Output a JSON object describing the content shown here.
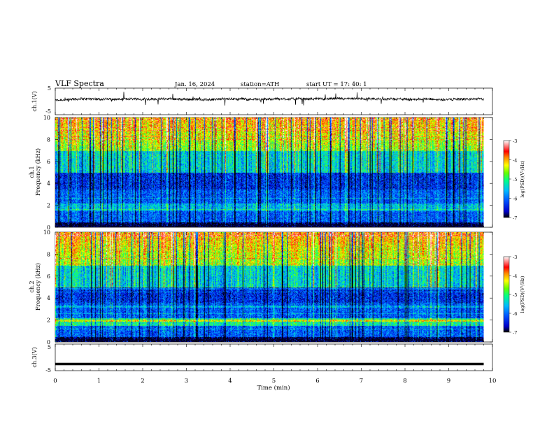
{
  "header": {
    "title": "VLF  Spectra",
    "date": "Jan. 16, 2024",
    "station": "station=ATH",
    "start": "start  UT  =   17: 40: 1"
  },
  "chart_data": [
    {
      "type": "line",
      "name": "ch1-waveform",
      "ylabel": "ch.1(V)",
      "ylim": [
        -5,
        5
      ],
      "yticks": [
        "5",
        "-5"
      ],
      "xlim": [
        0,
        10
      ],
      "baseline": 0.4,
      "description": "noisy waveform near baseline"
    },
    {
      "type": "heatmap",
      "name": "ch1-spectrogram",
      "ylabel_top": "ch.1",
      "ylabel": "Frequency  (kHz)",
      "ylim": [
        0,
        10
      ],
      "yticks": [
        "0",
        "2",
        "4",
        "6",
        "8",
        "10"
      ],
      "xlim": [
        0,
        10
      ],
      "data_end_min": 9.8
    },
    {
      "type": "heatmap",
      "name": "ch2-spectrogram",
      "ylabel_top": "ch.2",
      "ylabel": "Frequency  (kHz)",
      "ylim": [
        0,
        10
      ],
      "yticks": [
        "0",
        "2",
        "4",
        "6",
        "8",
        "10"
      ],
      "xlim": [
        0,
        10
      ],
      "data_end_min": 9.8
    },
    {
      "type": "line",
      "name": "ch3-waveform",
      "ylabel": "ch.3(V)",
      "ylim": [
        -5,
        5
      ],
      "yticks": [
        "5",
        "-5"
      ],
      "xlim": [
        0,
        10
      ],
      "baseline": -2.5,
      "description": "flat thick line"
    }
  ],
  "xaxis": {
    "label": "Time  (min)",
    "ticks": [
      "0",
      "1",
      "2",
      "3",
      "4",
      "5",
      "6",
      "7",
      "8",
      "9",
      "10"
    ]
  },
  "colorbar": {
    "label": "log(PSD)(V²/Hz)",
    "ticks": [
      "-3",
      "-4",
      "-5",
      "-6",
      "-7"
    ],
    "colors": [
      "#000000",
      "#0000cc",
      "#0055ff",
      "#00bbff",
      "#00ff88",
      "#66ff00",
      "#ffff00",
      "#ff8800",
      "#ff0000",
      "#ffffff"
    ]
  }
}
